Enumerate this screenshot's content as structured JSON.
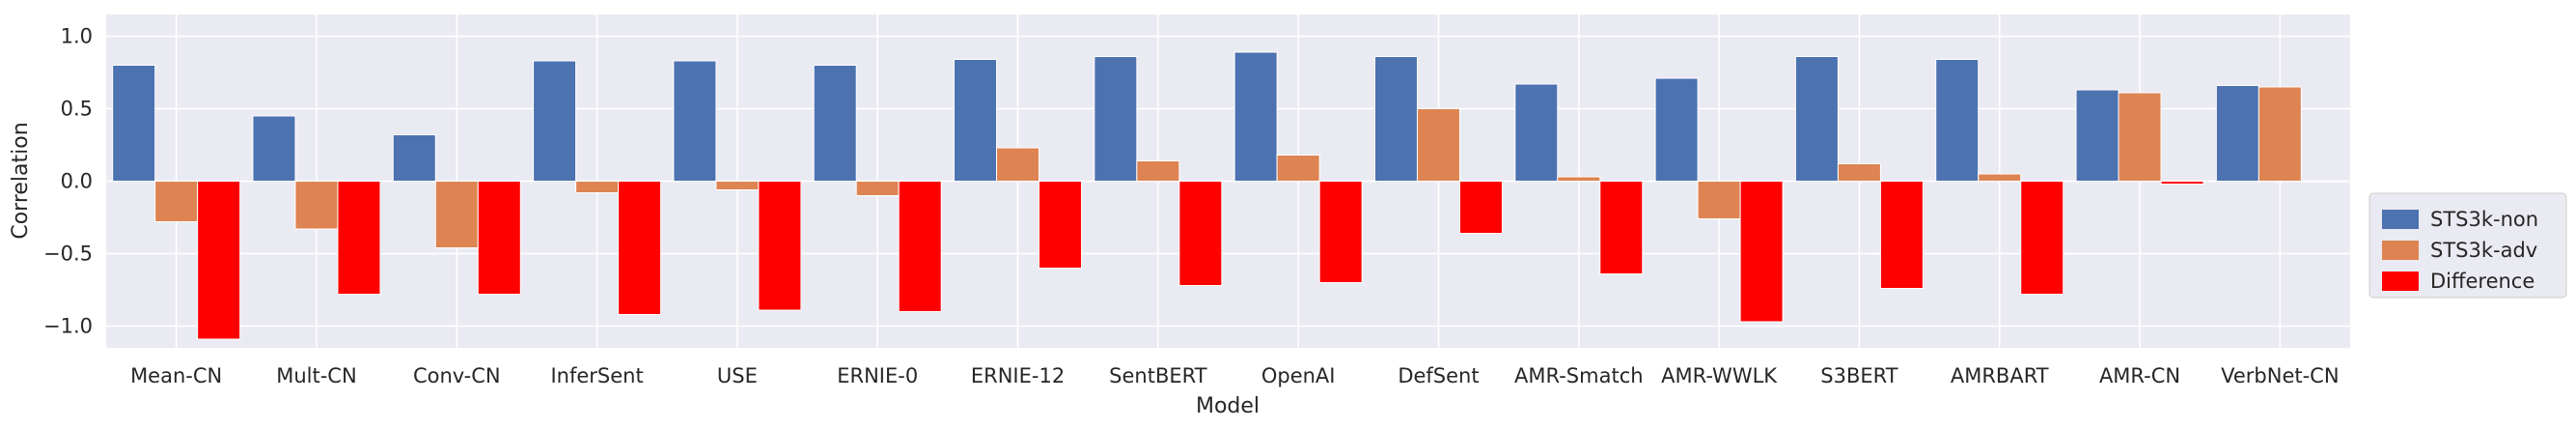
{
  "chart_data": {
    "type": "bar",
    "xlabel": "Model",
    "ylabel": "Correlation",
    "ylim": [
      -1.15,
      1.15
    ],
    "yticks": [
      1.0,
      0.5,
      0.0,
      -0.5,
      -1.0
    ],
    "ytick_labels": [
      "1.0",
      "0.5",
      "0.0",
      "−0.5",
      "−1.0"
    ],
    "grid": true,
    "legend_position": "right",
    "categories": [
      "Mean-CN",
      "Mult-CN",
      "Conv-CN",
      "InferSent",
      "USE",
      "ERNIE-0",
      "ERNIE-12",
      "SentBERT",
      "OpenAI",
      "DefSent",
      "AMR-Smatch",
      "AMR-WWLK",
      "S3BERT",
      "AMRBART",
      "AMR-CN",
      "VerbNet-CN"
    ],
    "series": [
      {
        "name": "STS3k-non",
        "color": "#4c72b0",
        "values": [
          0.8,
          0.45,
          0.32,
          0.83,
          0.83,
          0.8,
          0.84,
          0.86,
          0.89,
          0.86,
          0.67,
          0.71,
          0.86,
          0.84,
          0.63,
          0.66
        ]
      },
      {
        "name": "STS3k-adv",
        "color": "#dd8452",
        "values": [
          -0.28,
          -0.33,
          -0.46,
          -0.08,
          -0.06,
          -0.1,
          0.23,
          0.14,
          0.18,
          0.5,
          0.03,
          -0.26,
          0.12,
          0.05,
          0.61,
          0.65
        ]
      },
      {
        "name": "Difference",
        "color": "#ff0000",
        "values": [
          -1.09,
          -0.78,
          -0.78,
          -0.92,
          -0.89,
          -0.9,
          -0.6,
          -0.72,
          -0.7,
          -0.36,
          -0.64,
          -0.97,
          -0.74,
          -0.78,
          -0.02,
          0.0
        ]
      }
    ]
  }
}
